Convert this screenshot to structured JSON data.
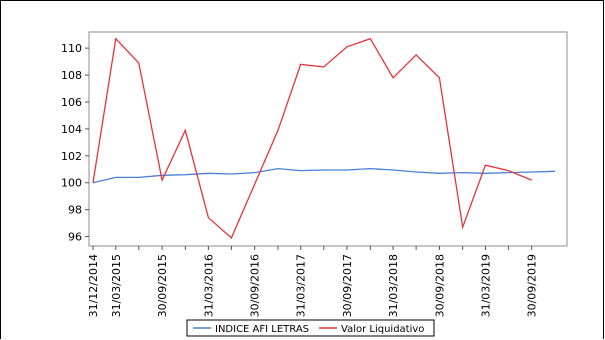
{
  "chart_data": {
    "type": "line",
    "title": "",
    "xlabel": "",
    "ylabel": "",
    "ylim": [
      95.3,
      111.2
    ],
    "yticks": [
      96,
      98,
      100,
      102,
      104,
      106,
      108,
      110
    ],
    "y_tick_labels": [
      "96",
      "98",
      "100",
      "102",
      "104",
      "106",
      "108",
      "110"
    ],
    "x": [
      "31/12/2014",
      "30/06/2015",
      "31/12/2015",
      "30/06/2016",
      "31/12/2016",
      "30/06/2017",
      "31/12/2017",
      "30/06/2018",
      "31/12/2018",
      "30/06/2019"
    ],
    "xticks": [
      "31/12/2014",
      "31/03/2015",
      "30/09/2015",
      "31/03/2016",
      "30/09/2016",
      "31/03/2017",
      "30/09/2017",
      "31/03/2018",
      "30/09/2018",
      "31/03/2019",
      "30/09/2019"
    ],
    "grid": false,
    "legend_position": "bottom",
    "series": [
      {
        "name": "INDICE AFI LETRAS",
        "color": "#4a7fd4",
        "points": [
          [
            "31/12/2014",
            100.0
          ],
          [
            "31/03/2015",
            100.4
          ],
          [
            "30/06/2015",
            100.4
          ],
          [
            "30/09/2015",
            100.55
          ],
          [
            "31/12/2015",
            100.6
          ],
          [
            "31/03/2016",
            100.7
          ],
          [
            "30/06/2016",
            100.65
          ],
          [
            "30/09/2016",
            100.75
          ],
          [
            "31/12/2016",
            101.05
          ],
          [
            "31/03/2017",
            100.9
          ],
          [
            "30/06/2017",
            100.95
          ],
          [
            "30/09/2017",
            100.95
          ],
          [
            "31/12/2017",
            101.05
          ],
          [
            "31/03/2018",
            100.95
          ],
          [
            "30/06/2018",
            100.8
          ],
          [
            "30/09/2018",
            100.7
          ],
          [
            "31/12/2018",
            100.75
          ],
          [
            "31/03/2019",
            100.7
          ],
          [
            "30/06/2019",
            100.75
          ],
          [
            "30/09/2019",
            100.8
          ],
          [
            "31/12/2019",
            100.85
          ]
        ]
      },
      {
        "name": "Valor Liquidativo",
        "color": "#e8323a",
        "points": [
          [
            "31/12/2014",
            100.0
          ],
          [
            "31/03/2015",
            110.7
          ],
          [
            "30/06/2015",
            108.9
          ],
          [
            "30/09/2015",
            100.2
          ],
          [
            "31/12/2015",
            103.9
          ],
          [
            "31/03/2016",
            97.4
          ],
          [
            "30/06/2016",
            95.9
          ],
          [
            "30/09/2016",
            99.9
          ],
          [
            "31/12/2016",
            103.9
          ],
          [
            "31/03/2017",
            108.8
          ],
          [
            "30/06/2017",
            108.6
          ],
          [
            "30/09/2017",
            110.1
          ],
          [
            "31/12/2017",
            110.7
          ],
          [
            "31/03/2018",
            107.8
          ],
          [
            "30/06/2018",
            109.5
          ],
          [
            "30/09/2018",
            107.8
          ],
          [
            "31/12/2018",
            96.7
          ],
          [
            "31/03/2019",
            101.3
          ],
          [
            "30/06/2019",
            100.9
          ],
          [
            "30/09/2019",
            100.2
          ]
        ]
      }
    ]
  }
}
